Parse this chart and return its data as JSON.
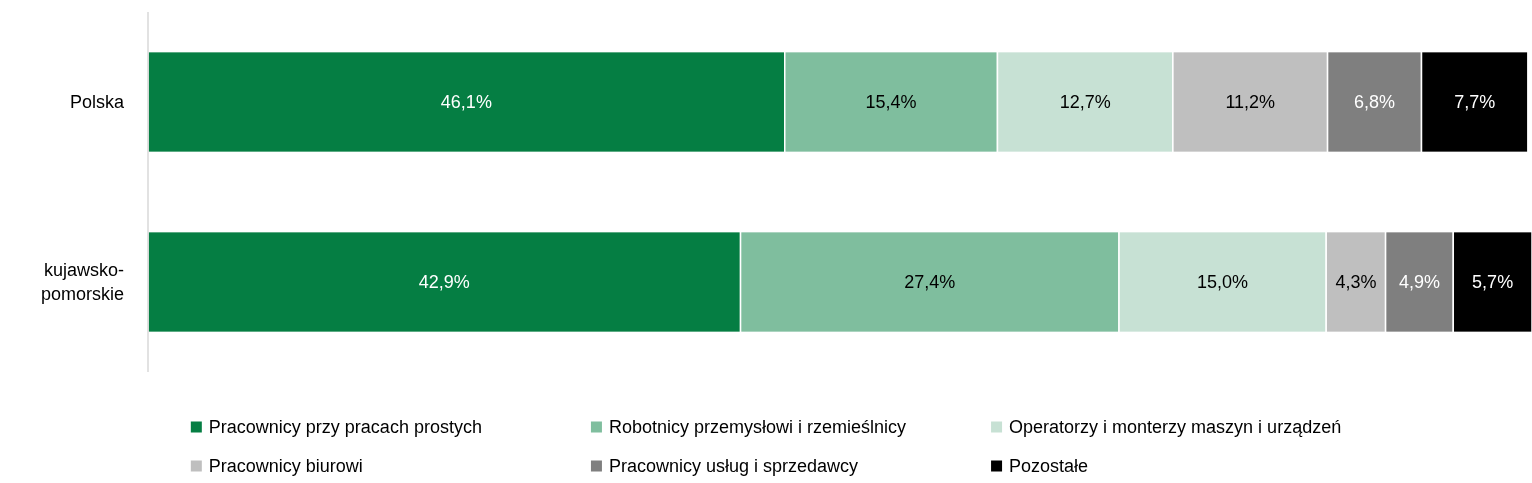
{
  "chart_data": {
    "type": "bar",
    "orientation": "horizontal",
    "stacked": true,
    "categories": [
      "Polska",
      "kujawsko-pomorskie"
    ],
    "series": [
      {
        "name": "Pracownicy przy pracach prostych",
        "color": "#057e43",
        "values": [
          46.1,
          42.9
        ],
        "value_labels": [
          "46,1%",
          "42,9%"
        ]
      },
      {
        "name": "Robotnicy przemysłowi i rzemieślnicy",
        "color": "#7fbe9e",
        "values": [
          15.4,
          27.4
        ],
        "value_labels": [
          "15,4%",
          "27,4%"
        ]
      },
      {
        "name": "Operatorzy i monterzy maszyn i urządzeń",
        "color": "#c7e1d4",
        "values": [
          12.7,
          15.0
        ],
        "value_labels": [
          "12,7%",
          "15,0%"
        ]
      },
      {
        "name": "Pracownicy biurowi",
        "color": "#bfbfbf",
        "values": [
          11.2,
          4.3
        ],
        "value_labels": [
          "11,2%",
          "4,3%"
        ]
      },
      {
        "name": "Pracownicy usług i sprzedawcy",
        "color": "#7f7f7f",
        "values": [
          6.8,
          4.9
        ],
        "value_labels": [
          "6,8%",
          "4,9%"
        ]
      },
      {
        "name": "Pozostałe",
        "color": "#000000",
        "values": [
          7.7,
          5.7
        ],
        "value_labels": [
          "7,7%",
          "5,7%"
        ]
      }
    ],
    "xlim": [
      0,
      100.2
    ],
    "tick_labels": "y",
    "legend": "bottom"
  }
}
